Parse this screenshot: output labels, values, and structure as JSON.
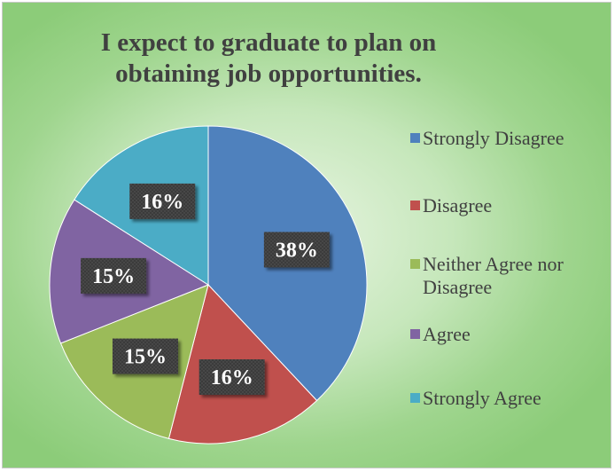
{
  "chart_data": {
    "type": "pie",
    "title": "I expect to graduate to plan on obtaining job opportunities.",
    "unit": "%",
    "categories": [
      "Strongly Disagree",
      "Disagree",
      "Neither Agree nor Disagree",
      "Agree",
      "Strongly Agree"
    ],
    "values": [
      38,
      16,
      15,
      15,
      16
    ],
    "data_labels": [
      "38%",
      "16%",
      "15%",
      "15%",
      "16%"
    ],
    "colors": [
      "#4f81bd",
      "#c0504d",
      "#9bbb59",
      "#8064a2",
      "#4bacc6"
    ],
    "legend_position": "right",
    "start_angle_deg": 0,
    "direction": "clockwise"
  },
  "legend": {
    "items": [
      {
        "label": "Strongly Disagree",
        "color": "#4f81bd"
      },
      {
        "label": "Disagree",
        "color": "#c0504d"
      },
      {
        "label": "Neither Agree nor Disagree",
        "color": "#9bbb59"
      },
      {
        "label": "Agree",
        "color": "#8064a2"
      },
      {
        "label": "Strongly Agree",
        "color": "#4bacc6"
      }
    ]
  }
}
